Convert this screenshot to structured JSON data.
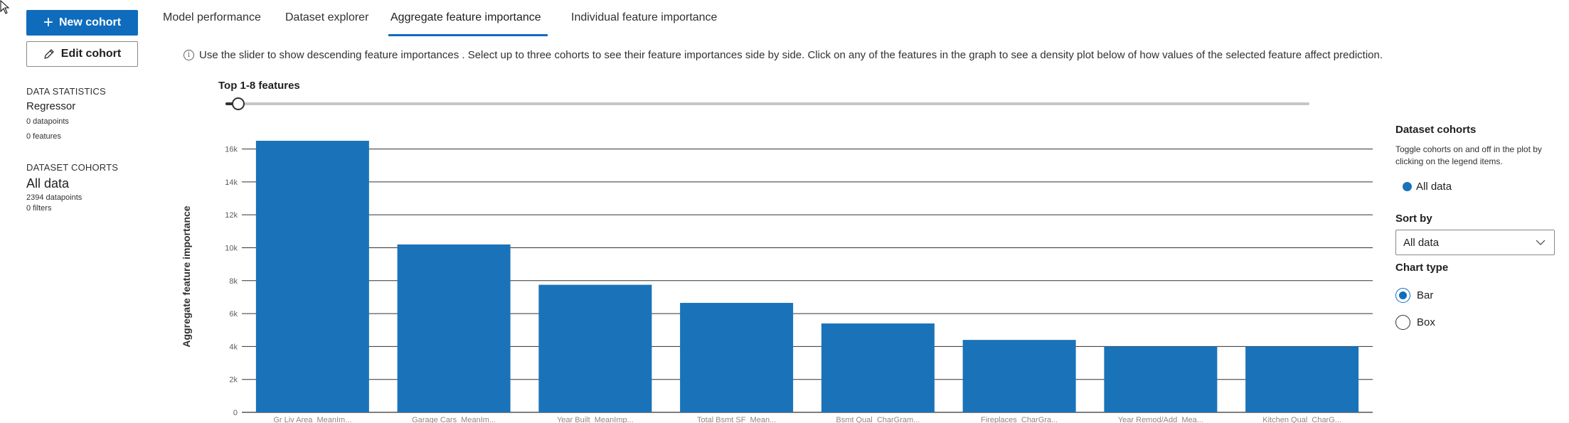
{
  "left_panel": {
    "new_cohort_label": "New cohort",
    "edit_cohort_label": "Edit cohort",
    "data_statistics": {
      "heading": "DATA STATISTICS",
      "model_type": "Regressor",
      "datapoints": "0 datapoints",
      "features": "0 features"
    },
    "dataset_cohorts": {
      "heading": "DATASET COHORTS",
      "name": "All data",
      "datapoints": "2394 datapoints",
      "filters": "0 filters"
    }
  },
  "tabs": [
    {
      "label": "Model performance",
      "active": false
    },
    {
      "label": "Dataset explorer",
      "active": false
    },
    {
      "label": "Aggregate feature importance",
      "active": true
    },
    {
      "label": "Individual feature importance",
      "active": false
    }
  ],
  "info_text": "Use the slider to show descending feature importances . Select up to three cohorts to see their feature importances side by side. Click on any of the features in the graph to see a density plot below of how values of the selected feature affect prediction.",
  "slider": {
    "label": "Top 1-8 features",
    "value": 8
  },
  "chart_data": {
    "type": "bar",
    "title": "",
    "xlabel": "",
    "ylabel": "Aggregate feature importance",
    "ylim": [
      0,
      16500
    ],
    "grid": true,
    "y_ticks": [
      0,
      2000,
      4000,
      6000,
      8000,
      10000,
      12000,
      14000,
      16000
    ],
    "y_tick_labels": [
      "0",
      "2k",
      "4k",
      "6k",
      "8k",
      "10k",
      "12k",
      "14k",
      "16k"
    ],
    "categories": [
      "Gr Liv Area_MeanIm...",
      "Garage Cars_MeanIm...",
      "Year Built_MeanImp...",
      "Total Bsmt SF_Mean...",
      "Bsmt Qual_CharGram...",
      "Fireplaces_CharGra...",
      "Year Remod/Add_Mea...",
      "Kitchen Qual_CharG..."
    ],
    "values": [
      16500,
      10200,
      7750,
      6650,
      5400,
      4400,
      4000,
      4000
    ],
    "bar_color": "#1a73b8"
  },
  "right_panel": {
    "dataset_cohorts_title": "Dataset cohorts",
    "dataset_cohorts_desc": "Toggle cohorts on and off in the plot by clicking on the legend items.",
    "legend_item": "All data",
    "legend_color": "#1a73b8",
    "sort_by_title": "Sort by",
    "sort_by_value": "All data",
    "chart_type_title": "Chart type",
    "chart_type_options": [
      {
        "label": "Bar",
        "checked": true
      },
      {
        "label": "Box",
        "checked": false
      }
    ]
  }
}
